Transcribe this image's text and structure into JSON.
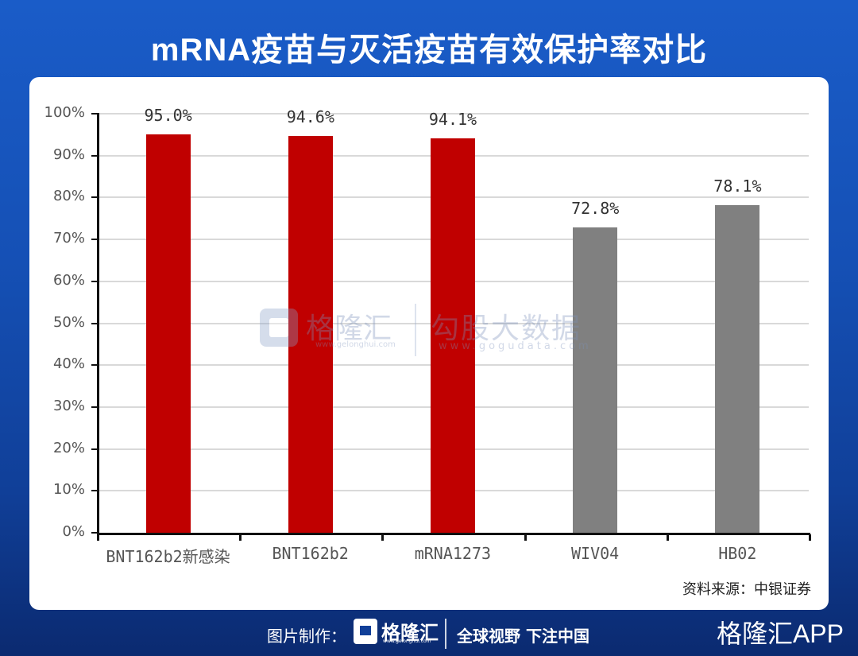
{
  "header": {
    "title": "mRNA疫苗与灭活疫苗有效保护率对比"
  },
  "chart_data": {
    "type": "bar",
    "title": "mRNA疫苗与灭活疫苗有效保护率对比",
    "xlabel": "",
    "ylabel": "",
    "categories": [
      "BNT162b2新感染",
      "BNT162b2",
      "mRNA1273",
      "WIV04",
      "HB02"
    ],
    "values": [
      95.0,
      94.6,
      94.1,
      72.8,
      78.1
    ],
    "value_labels": [
      "95.0%",
      "94.6%",
      "94.1%",
      "72.8%",
      "78.1%"
    ],
    "bar_colors": [
      "#c00000",
      "#c00000",
      "#c00000",
      "#808080",
      "#808080"
    ],
    "ylim": [
      0,
      100
    ],
    "yticks": [
      "0%",
      "10%",
      "20%",
      "30%",
      "40%",
      "50%",
      "60%",
      "70%",
      "80%",
      "90%",
      "100%"
    ],
    "grid": true,
    "legend": "none"
  },
  "source": "资料来源：中银证券",
  "watermark": {
    "brand": "格隆汇",
    "brand_url": "www.gelonghui.com",
    "data_brand": "勾股大数据",
    "data_url": "www.gogudata.com"
  },
  "footer": {
    "made_by": "图片制作：",
    "logo_text": "格隆汇",
    "logo_url": "www.gelonghui.com",
    "slogan": "全球视野 下注中国",
    "app": "格隆汇APP"
  },
  "colors": {
    "mrna_bar": "#c00000",
    "inactivated_bar": "#808080",
    "background": "#1550b5"
  }
}
